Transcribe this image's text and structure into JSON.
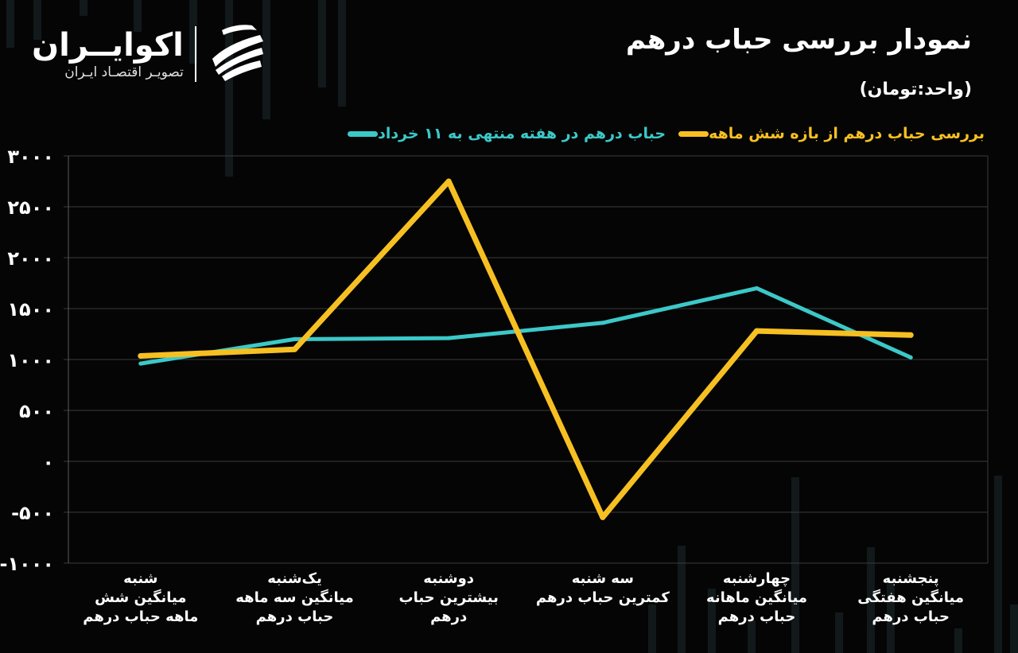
{
  "header": {
    "title": "نمودار بررسی حباب درهم",
    "unit": "(واحد:تومان)"
  },
  "brand": {
    "name": "اکوایــران",
    "tagline": "تصویـر اقتصـاد ایـران"
  },
  "colors": {
    "background": "#050505",
    "series_teal": "#3cc8c8",
    "series_yellow": "#f7c022",
    "grid": "#3a3a3a",
    "text": "#ffffff"
  },
  "chart_data": {
    "type": "line",
    "title": "نمودار بررسی حباب درهم",
    "ylabel": "(واحد:تومان)",
    "xlabel": "",
    "ylim": [
      -1000,
      3000
    ],
    "yticks": [
      3000,
      2500,
      2000,
      1500,
      1000,
      500,
      0,
      -500,
      -1000
    ],
    "ytick_labels": [
      "۳۰۰۰",
      "۲۵۰۰",
      "۲۰۰۰",
      "۱۵۰۰",
      "۱۰۰۰",
      "۵۰۰",
      "۰",
      "-۵۰۰",
      "-۱۰۰۰"
    ],
    "grid": true,
    "legend_position": "top-right",
    "categories": [
      [
        "شنبه",
        "میانگین شش",
        "ماهه حباب درهم"
      ],
      [
        "یک‌شنبه",
        "میانگین سه ماهه",
        "حباب درهم"
      ],
      [
        "دوشنبه",
        "بیشترین حباب",
        "درهم"
      ],
      [
        "سه شنبه",
        "کمترین حباب درهم"
      ],
      [
        "چهارشنبه",
        "میانگین ماهانه",
        "حباب درهم"
      ],
      [
        "پنجشنبه",
        "میانگین هفتگی",
        "حباب درهم"
      ]
    ],
    "series": [
      {
        "name": "حباب درهم در هفته منتهی به ۱۱ خرداد",
        "color": "#3cc8c8",
        "values": [
          960,
          1200,
          1210,
          1360,
          1700,
          1020
        ]
      },
      {
        "name": "بررسی حباب درهم از بازه شش ماهه",
        "color": "#f7c022",
        "values": [
          1035,
          1100,
          2750,
          -550,
          1280,
          1240
        ]
      }
    ]
  }
}
